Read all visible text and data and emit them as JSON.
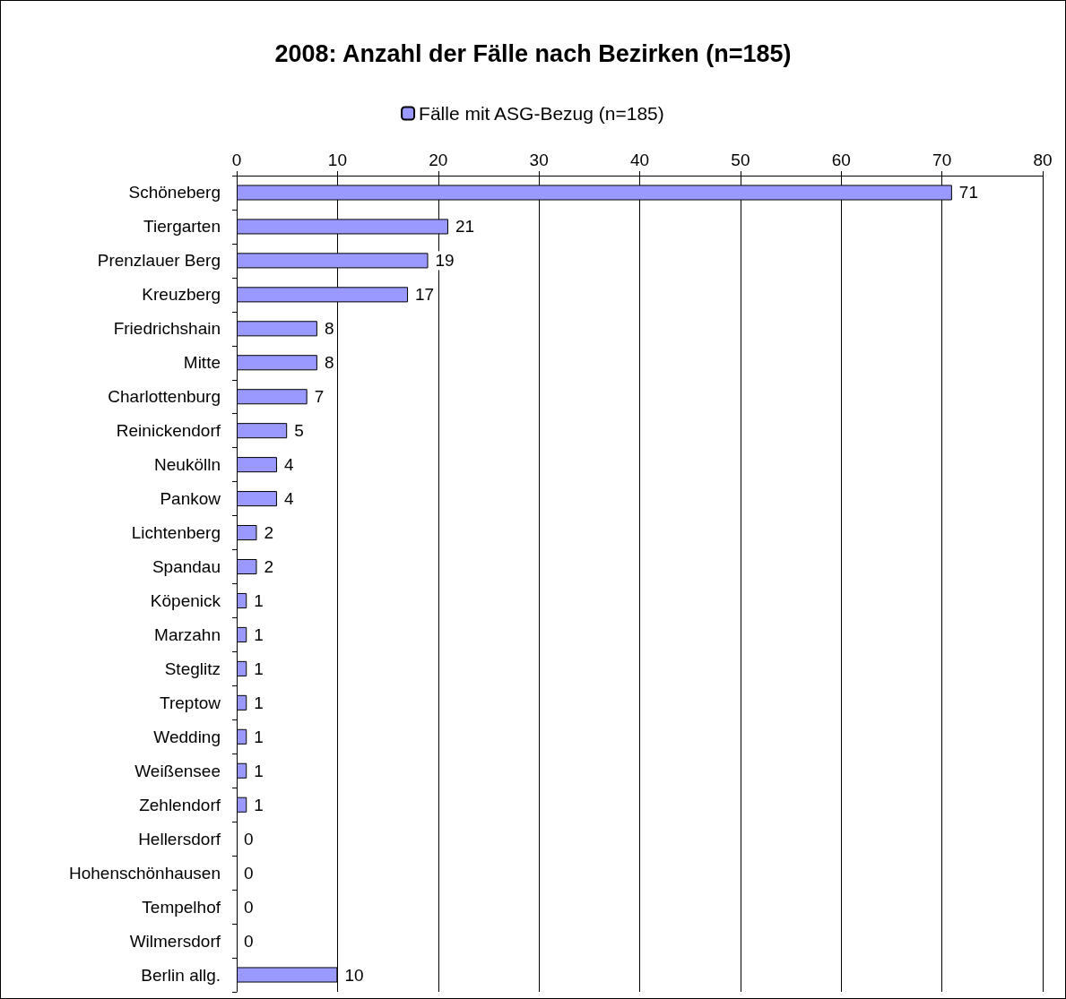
{
  "chart_data": {
    "type": "bar",
    "orientation": "horizontal",
    "title": "2008: Anzahl der Fälle nach Bezirken (n=185)",
    "categories": [
      "Schöneberg",
      "Tiergarten",
      "Prenzlauer Berg",
      "Kreuzberg",
      "Friedrichshain",
      "Mitte",
      "Charlottenburg",
      "Reinickendorf",
      "Neukölln",
      "Pankow",
      "Lichtenberg",
      "Spandau",
      "Köpenick",
      "Marzahn",
      "Steglitz",
      "Treptow",
      "Wedding",
      "Weißensee",
      "Zehlendorf",
      "Hellersdorf",
      "Hohenschönhausen",
      "Tempelhof",
      "Wilmersdorf",
      "Berlin allg."
    ],
    "series": [
      {
        "name": "Fälle mit ASG-Bezug (n=185)",
        "color": "#9999ff",
        "values": [
          71,
          21,
          19,
          17,
          8,
          8,
          7,
          5,
          4,
          4,
          2,
          2,
          1,
          1,
          1,
          1,
          1,
          1,
          1,
          0,
          0,
          0,
          0,
          10
        ]
      }
    ],
    "xlim": [
      0,
      80
    ],
    "xticks": [
      0,
      10,
      20,
      30,
      40,
      50,
      60,
      70,
      80
    ],
    "grid": "x",
    "legend": "top",
    "data_labels": true
  }
}
